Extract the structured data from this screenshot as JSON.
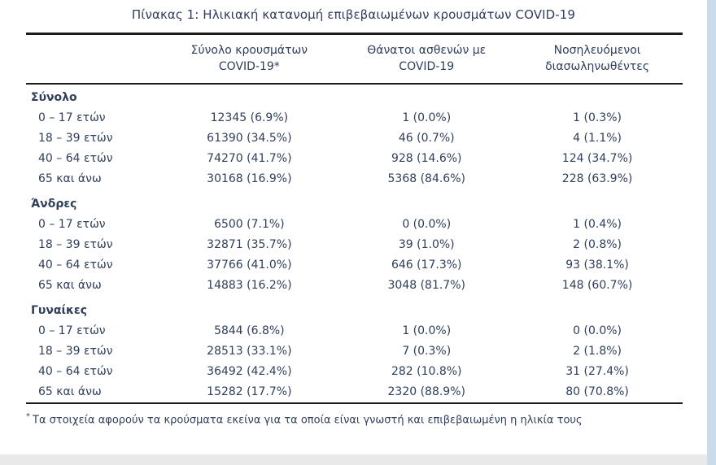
{
  "title": "Πίνακας 1: Ηλικιακή κατανομή επιβεβαιωμένων κρουσμάτων COVID-19",
  "table": {
    "columns": [
      {
        "line1": "Σύνολο κρουσμάτων",
        "line2": "COVID-19*"
      },
      {
        "line1": "Θάνατοι ασθενών με",
        "line2": "COVID-19"
      },
      {
        "line1": "Νοσηλευόμενοι",
        "line2": "διασωληνωθέντες"
      }
    ],
    "sections": [
      {
        "header": "Σύνολο",
        "rows": [
          {
            "label": "0 – 17 ετών",
            "cases": "12345 (6.9%)",
            "deaths": "1 (0.0%)",
            "icu": "1 (0.3%)"
          },
          {
            "label": "18 – 39 ετών",
            "cases": "61390 (34.5%)",
            "deaths": "46 (0.7%)",
            "icu": "4 (1.1%)"
          },
          {
            "label": "40 – 64 ετών",
            "cases": "74270 (41.7%)",
            "deaths": "928 (14.6%)",
            "icu": "124 (34.7%)"
          },
          {
            "label": "65 και άνω",
            "cases": "30168 (16.9%)",
            "deaths": "5368 (84.6%)",
            "icu": "228 (63.9%)"
          }
        ]
      },
      {
        "header": "Άνδρες",
        "rows": [
          {
            "label": "0 – 17 ετών",
            "cases": "6500 (7.1%)",
            "deaths": "0 (0.0%)",
            "icu": "1 (0.4%)"
          },
          {
            "label": "18 – 39 ετών",
            "cases": "32871 (35.7%)",
            "deaths": "39 (1.0%)",
            "icu": "2 (0.8%)"
          },
          {
            "label": "40 – 64 ετών",
            "cases": "37766 (41.0%)",
            "deaths": "646 (17.3%)",
            "icu": "93 (38.1%)"
          },
          {
            "label": "65 και άνω",
            "cases": "14883 (16.2%)",
            "deaths": "3048 (81.7%)",
            "icu": "148 (60.7%)"
          }
        ]
      },
      {
        "header": "Γυναίκες",
        "rows": [
          {
            "label": "0 – 17 ετών",
            "cases": "5844 (6.8%)",
            "deaths": "1 (0.0%)",
            "icu": "0 (0.0%)"
          },
          {
            "label": "18 – 39 ετών",
            "cases": "28513 (33.1%)",
            "deaths": "7 (0.3%)",
            "icu": "2 (1.8%)"
          },
          {
            "label": "40 – 64 ετών",
            "cases": "36492 (42.4%)",
            "deaths": "282 (10.8%)",
            "icu": "31 (27.4%)"
          },
          {
            "label": "65 και άνω",
            "cases": "15282 (17.7%)",
            "deaths": "2320 (88.9%)",
            "icu": "80 (70.8%)"
          }
        ]
      }
    ]
  },
  "footnote": {
    "marker": "*",
    "text": "Τα στοιχεία αφορούν τα κρούσματα εκείνα για τα οποία είναι γνωστή και επιβεβαιωμένη η ηλικία τους"
  },
  "colors": {
    "text": "#2f3e5a",
    "rule": "#1c1c1e",
    "right_strip": "#c9dcec",
    "bottom_strip": "#e9e9e9"
  }
}
